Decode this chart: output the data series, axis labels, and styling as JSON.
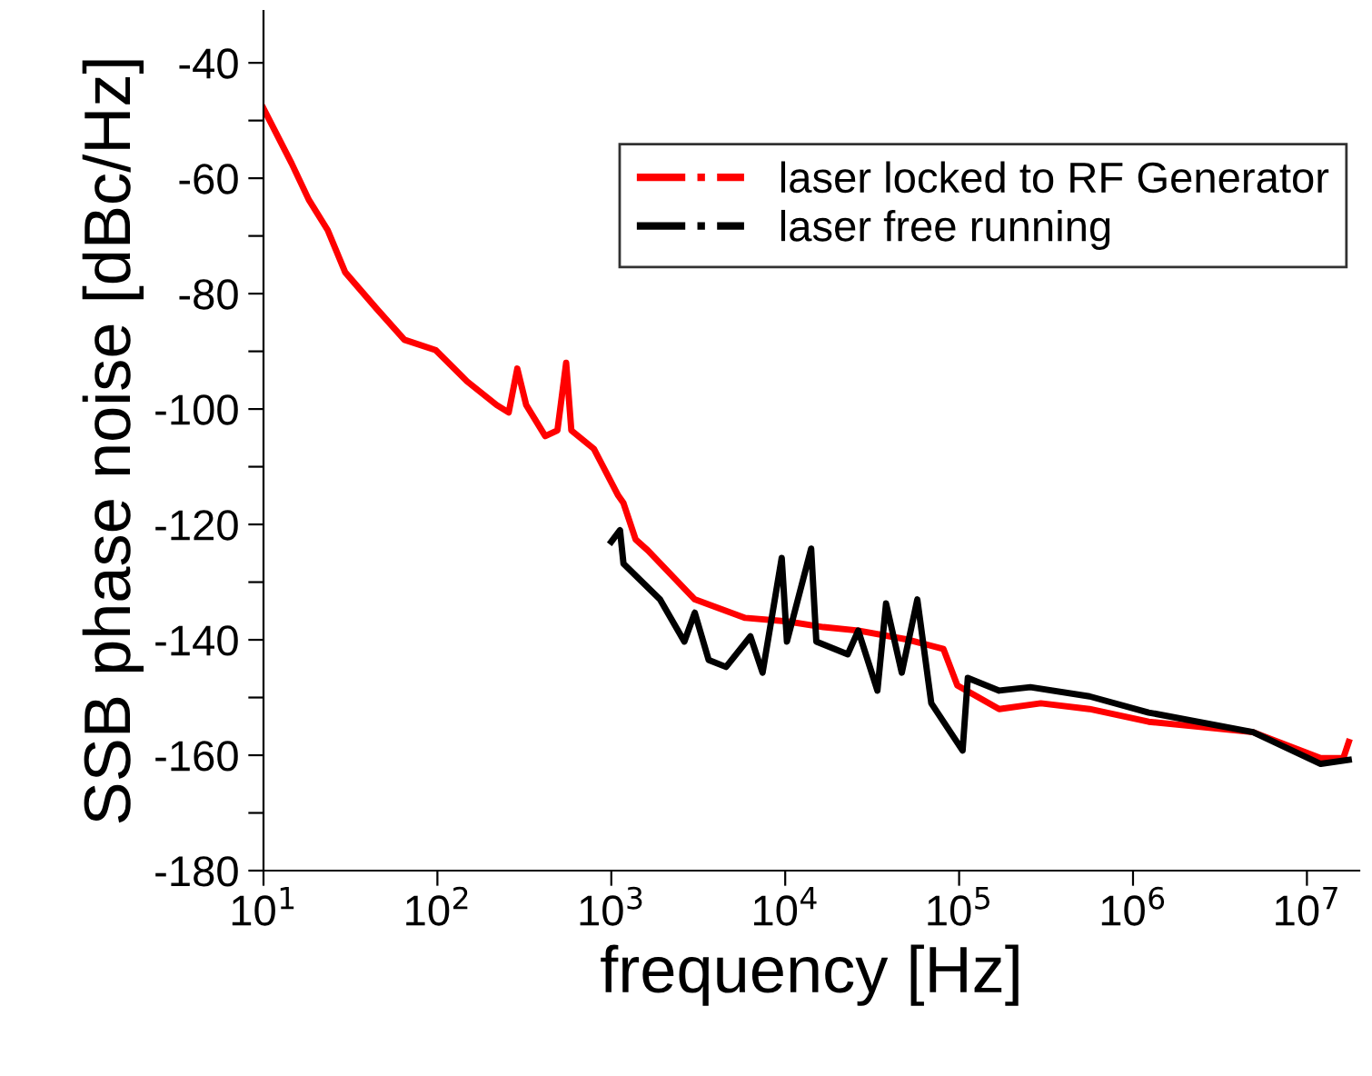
{
  "chart_data": {
    "type": "line",
    "xlabel": "frequency [Hz]",
    "ylabel": "SSB phase noise [dBc/Hz]",
    "log": "x",
    "xlim": [
      10,
      20000000
    ],
    "ylim": [
      -180,
      -31
    ],
    "xticks": [
      {
        "value": 10,
        "label": "10$^{1}$"
      },
      {
        "value": 100,
        "label": "10$^{2}$"
      },
      {
        "value": 1000,
        "label": "10$^{3}$"
      },
      {
        "value": 10000,
        "label": "10$^{4}$"
      },
      {
        "value": 100000,
        "label": "10$^{5}$"
      },
      {
        "value": 1000000,
        "label": "10$^{6}$"
      },
      {
        "value": 10000000,
        "label": "10$^{7}$"
      }
    ],
    "yticks": [
      -180,
      {
        "value": -170,
        "label": null
      },
      -160,
      {
        "value": -150,
        "label": null
      },
      -140,
      {
        "value": -130,
        "label": null
      },
      -120,
      {
        "value": -110,
        "label": null
      },
      -100,
      {
        "value": -90,
        "label": null
      },
      -80,
      {
        "value": -70,
        "label": null
      },
      -60,
      {
        "value": -50,
        "label": null
      },
      -40
    ],
    "grid": false,
    "legend": "top right",
    "line_style": "solid",
    "marker": "none",
    "series": [
      {
        "name": "laser locked to RF Generator",
        "color": "#ff0000",
        "x": [
          10,
          14.5,
          18.2,
          23.4,
          29.5,
          44.7,
          64.6,
          97.7,
          148,
          219,
          257,
          288,
          324,
          417,
          490,
          550,
          589,
          794,
          1096,
          1175,
          1380,
          1622,
          3020,
          5890,
          10230,
          16600,
          26300,
          51300,
          81300,
          97700,
          170000,
          295000,
          562000,
          1230000,
          4900000,
          12000000,
          16200000,
          17400000
        ],
        "values": [
          -47.9,
          -57.4,
          -63.7,
          -69,
          -76.3,
          -82.6,
          -88,
          -89.8,
          -95.2,
          -99.3,
          -100.6,
          -93,
          -99.3,
          -104.7,
          -103.7,
          -92,
          -103.7,
          -106.9,
          -115,
          -116.3,
          -122.6,
          -124.5,
          -133,
          -136.2,
          -136.8,
          -137.8,
          -138.4,
          -140,
          -141.6,
          -147.9,
          -152,
          -151,
          -152,
          -154.2,
          -156,
          -160.5,
          -160.5,
          -157.7
        ]
      },
      {
        "name": "laser free running",
        "color": "#000000",
        "x": [
          1000,
          1122,
          1175,
          1905,
          2630,
          3020,
          3630,
          4570,
          6310,
          7410,
          9550,
          10230,
          14100,
          15100,
          22900,
          26300,
          33900,
          38000,
          46800,
          57500,
          69200,
          104700,
          112200,
          170000,
          257000,
          562000,
          1230000,
          4900000,
          12000000,
          17400000
        ],
        "values": [
          -123,
          -121,
          -126.8,
          -133,
          -140.3,
          -135.3,
          -143.5,
          -144.7,
          -139.4,
          -145.7,
          -125.8,
          -140.3,
          -124.2,
          -140.3,
          -142.5,
          -138.4,
          -148.8,
          -133.7,
          -145.7,
          -133,
          -151,
          -159.2,
          -146.6,
          -148.8,
          -148.2,
          -149.8,
          -152.6,
          -156,
          -161.5,
          -160.8
        ]
      }
    ]
  }
}
